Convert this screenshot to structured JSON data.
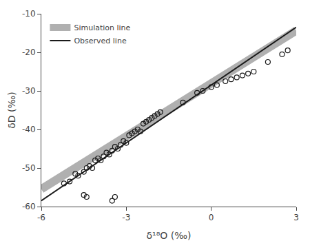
{
  "chart_data": {
    "type": "scatter",
    "xlabel": "δ¹⁸O (‰)",
    "ylabel": "δD (‰)",
    "xlim": [
      -6,
      3
    ],
    "ylim": [
      -60,
      -10
    ],
    "xticks": [
      -6,
      -3,
      0,
      3
    ],
    "yticks": [
      -60,
      -50,
      -40,
      -30,
      -20,
      -10
    ],
    "grid": false,
    "legend": "upper left",
    "series": [
      {
        "type": "line",
        "name": "Simulation line",
        "color": "#b0b0b0",
        "line_style": "band",
        "x": [
          -6,
          3
        ],
        "values": [
          -55.48,
          -14.35
        ]
      },
      {
        "type": "line",
        "name": "Observed line",
        "color": "#1a1a1a",
        "line_style": "solid",
        "x": [
          -6,
          3
        ],
        "values": [
          -58.48,
          -13.48
        ]
      },
      {
        "type": "scatter",
        "color": "#1a1a1a",
        "marker": "open circle",
        "x": [
          -5.2,
          -5.0,
          -4.8,
          -4.7,
          -4.5,
          -4.4,
          -4.3,
          -4.2,
          -4.1,
          -4.0,
          -3.9,
          -3.8,
          -3.7,
          -3.6,
          -3.5,
          -3.4,
          -3.3,
          -3.2,
          -3.1,
          -3.0,
          -2.9,
          -2.8,
          -2.7,
          -2.6,
          -2.5,
          -2.4,
          -2.3,
          -2.2,
          -2.1,
          -2.0,
          -1.9,
          -1.8,
          -1.0,
          -0.5,
          -0.3,
          0.0,
          0.2,
          0.5,
          0.7,
          0.9,
          1.1,
          1.3,
          1.5,
          2.0,
          2.5,
          2.7,
          -4.5,
          -4.4,
          -3.5,
          -3.4
        ],
        "values": [
          -54.0,
          -53.5,
          -51.5,
          -52.0,
          -51.0,
          -50.0,
          -49.5,
          -50.0,
          -48.0,
          -47.5,
          -48.0,
          -47.0,
          -46.0,
          -46.5,
          -45.5,
          -44.5,
          -45.0,
          -44.0,
          -43.0,
          -43.5,
          -41.5,
          -41.0,
          -40.5,
          -40.0,
          -40.5,
          -38.5,
          -38.0,
          -37.5,
          -37.0,
          -36.5,
          -36.0,
          -35.5,
          -33.0,
          -30.5,
          -30.0,
          -29.0,
          -28.5,
          -27.5,
          -27.0,
          -26.5,
          -26.0,
          -25.5,
          -25.0,
          -22.5,
          -20.5,
          -19.5,
          -57.0,
          -57.5,
          -58.5,
          -57.5
        ]
      }
    ]
  }
}
